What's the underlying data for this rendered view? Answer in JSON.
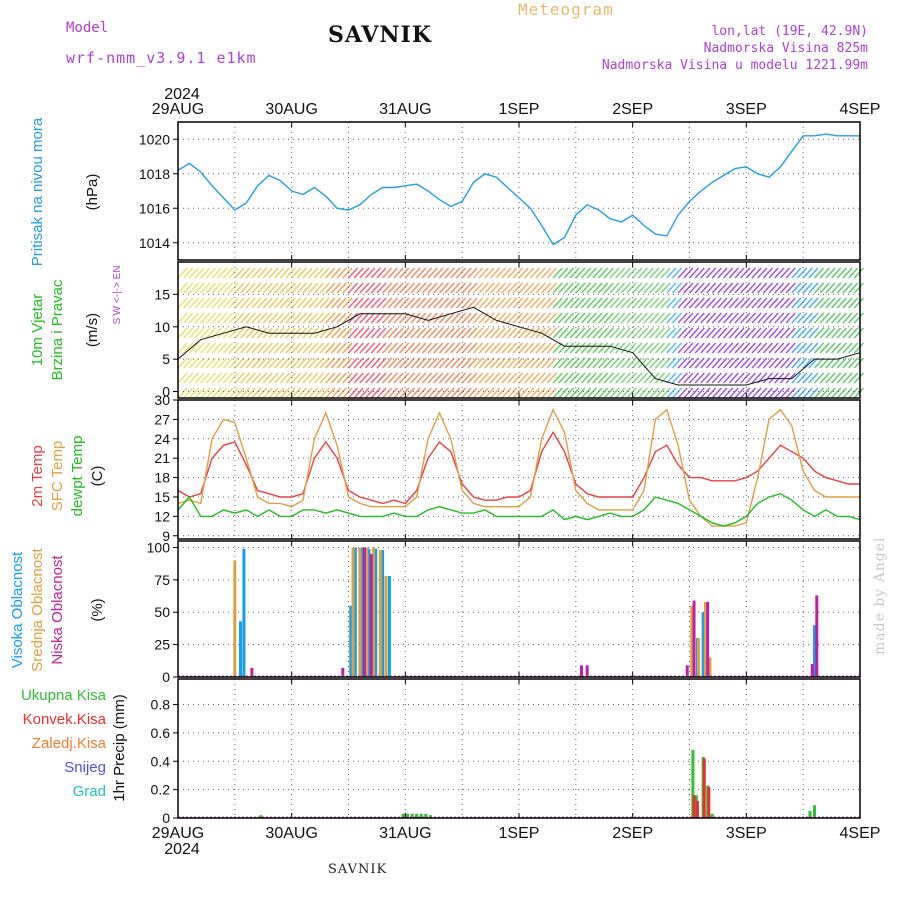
{
  "header": {
    "model_label": "Model",
    "model_name": "wrf-nmm_v3.9.1 e1km",
    "title": "SAVNIK",
    "meteogram_label": "Meteogram",
    "lonlat": "lon,lat (19E, 42.9N)",
    "altitude": "Nadmorska Visina 825m",
    "model_altitude": "Nadmorska Visina u modelu 1221.99m",
    "footer_station": "SAVNIK",
    "credit": "made by Angel"
  },
  "colors": {
    "pressure": "#1fa0e0",
    "temp2m": "#e84040",
    "sfc_temp": "#e0a040",
    "dewpoint": "#20c020",
    "high_cloud": "#10a0f0",
    "mid_cloud": "#e0a040",
    "low_cloud": "#c020a0",
    "total_precip": "#30c030",
    "conv_precip": "#e83030",
    "frozen_precip": "#f08030",
    "snow": "#5050e0",
    "hail": "#20c0c0"
  },
  "time_axis": {
    "year": "2024",
    "labels": [
      "29AUG",
      "30AUG",
      "31AUG",
      "1SEP",
      "2SEP",
      "3SEP",
      "4SEP"
    ]
  },
  "chart_data": [
    {
      "type": "line",
      "panel": "pressure",
      "ylabel_lines": [
        "Pritisak na nivou mora",
        "(hPa)"
      ],
      "ylim": [
        1013,
        1021
      ],
      "yticks": [
        "1014",
        "1016",
        "1018",
        "1020"
      ],
      "x_unit": "days since 29AUG 00UTC",
      "series": [
        {
          "name": "Pritisak na nivou mora",
          "x": [
            0,
            0.1,
            0.2,
            0.3,
            0.4,
            0.5,
            0.6,
            0.7,
            0.8,
            0.9,
            1.0,
            1.1,
            1.2,
            1.3,
            1.4,
            1.5,
            1.6,
            1.7,
            1.8,
            1.9,
            2.0,
            2.1,
            2.2,
            2.3,
            2.4,
            2.5,
            2.6,
            2.7,
            2.8,
            2.9,
            3.0,
            3.1,
            3.2,
            3.3,
            3.4,
            3.5,
            3.6,
            3.7,
            3.8,
            3.9,
            4.0,
            4.1,
            4.2,
            4.3,
            4.4,
            4.5,
            4.6,
            4.7,
            4.8,
            4.9,
            5.0,
            5.1,
            5.2,
            5.3,
            5.4,
            5.5,
            5.6,
            5.7,
            5.8,
            5.9,
            6.0
          ],
          "values": [
            1018.2,
            1018.6,
            1018.1,
            1017.3,
            1016.6,
            1015.9,
            1016.3,
            1017.3,
            1017.9,
            1017.6,
            1017.0,
            1016.8,
            1017.2,
            1016.7,
            1016.0,
            1015.9,
            1016.2,
            1016.8,
            1017.2,
            1017.2,
            1017.3,
            1017.4,
            1017.0,
            1016.5,
            1016.1,
            1016.4,
            1017.5,
            1018.0,
            1017.8,
            1017.2,
            1016.6,
            1016.0,
            1015.0,
            1013.9,
            1014.3,
            1015.6,
            1016.2,
            1015.9,
            1015.4,
            1015.2,
            1015.6,
            1015.0,
            1014.5,
            1014.4,
            1015.6,
            1016.4,
            1017.0,
            1017.5,
            1017.9,
            1018.3,
            1018.4,
            1018.0,
            1017.8,
            1018.4,
            1019.3,
            1020.2,
            1020.2,
            1020.3,
            1020.2,
            1020.2,
            1020.2
          ]
        }
      ]
    },
    {
      "type": "line",
      "panel": "wind",
      "ylabel_lines": [
        "10m Vjetar",
        "Brzina i Pravac",
        "(m/s)"
      ],
      "compass_lines": [
        "N",
        "^",
        "|",
        "W <-|-> E",
        "|",
        "v",
        "S"
      ],
      "ylim": [
        -1,
        20
      ],
      "yticks": [
        "0",
        "5",
        "10",
        "15"
      ],
      "x_unit": "days since 29AUG 00UTC",
      "series": [
        {
          "name": "10m Vjetar",
          "x": [
            0,
            0.2,
            0.4,
            0.6,
            0.8,
            1.0,
            1.2,
            1.4,
            1.6,
            1.8,
            2.0,
            2.2,
            2.4,
            2.6,
            2.8,
            3.0,
            3.2,
            3.4,
            3.6,
            3.8,
            4.0,
            4.2,
            4.4,
            4.6,
            4.8,
            5.0,
            5.2,
            5.4,
            5.6,
            5.8,
            6.0
          ],
          "values": [
            5,
            8,
            9,
            10,
            9,
            9,
            9,
            10,
            12,
            12,
            12,
            11,
            12,
            13,
            11,
            10,
            9,
            7,
            7,
            7,
            6,
            2,
            1,
            1,
            1,
            1,
            2,
            2,
            5,
            5,
            6
          ]
        }
      ]
    },
    {
      "type": "line",
      "panel": "temperature",
      "ylabel_lines": [
        "2m Temp",
        "SFC Temp",
        "dewpt Temp",
        "(C)"
      ],
      "ylim": [
        8.5,
        30
      ],
      "yticks": [
        "9",
        "12",
        "15",
        "18",
        "21",
        "24",
        "27",
        "30"
      ],
      "x_unit": "days since 29AUG 00UTC",
      "series": [
        {
          "name": "2m Temp",
          "x": [
            0,
            0.1,
            0.2,
            0.3,
            0.4,
            0.5,
            0.6,
            0.7,
            0.8,
            0.9,
            1.0,
            1.1,
            1.2,
            1.3,
            1.4,
            1.5,
            1.6,
            1.7,
            1.8,
            1.9,
            2.0,
            2.1,
            2.2,
            2.3,
            2.4,
            2.5,
            2.6,
            2.7,
            2.8,
            2.9,
            3.0,
            3.1,
            3.2,
            3.3,
            3.4,
            3.5,
            3.6,
            3.7,
            3.8,
            3.9,
            4.0,
            4.1,
            4.2,
            4.3,
            4.4,
            4.5,
            4.6,
            4.7,
            4.8,
            4.9,
            5.0,
            5.1,
            5.2,
            5.3,
            5.4,
            5.5,
            5.6,
            5.7,
            5.8,
            5.9,
            6.0
          ],
          "values": [
            16,
            15,
            15.5,
            21,
            23,
            23.5,
            20,
            16,
            15.5,
            15,
            15,
            15.5,
            21,
            23.5,
            21,
            16,
            15,
            14.5,
            14,
            14.5,
            14,
            16,
            21,
            23.5,
            22,
            17,
            15,
            14.5,
            14.5,
            15,
            15,
            16,
            22,
            25,
            22,
            17,
            15.5,
            15,
            15,
            15,
            15,
            18,
            22,
            23,
            20,
            18,
            18,
            17.5,
            17.5,
            17.5,
            18,
            19,
            21,
            23,
            22,
            21,
            19,
            18,
            17.5,
            17,
            17
          ]
        },
        {
          "name": "SFC Temp",
          "x": [
            0,
            0.1,
            0.2,
            0.3,
            0.4,
            0.5,
            0.6,
            0.7,
            0.8,
            0.9,
            1.0,
            1.1,
            1.2,
            1.3,
            1.4,
            1.5,
            1.6,
            1.7,
            1.8,
            1.9,
            2.0,
            2.1,
            2.2,
            2.3,
            2.4,
            2.5,
            2.6,
            2.7,
            2.8,
            2.9,
            3.0,
            3.1,
            3.2,
            3.3,
            3.4,
            3.5,
            3.6,
            3.7,
            3.8,
            3.9,
            4.0,
            4.1,
            4.2,
            4.3,
            4.4,
            4.5,
            4.6,
            4.7,
            4.8,
            4.9,
            5.0,
            5.1,
            5.2,
            5.3,
            5.4,
            5.5,
            5.6,
            5.7,
            5.8,
            5.9,
            6.0
          ],
          "values": [
            14,
            14.5,
            14,
            24,
            27,
            26.5,
            21,
            15,
            14,
            14,
            13.5,
            14.5,
            24,
            28,
            23,
            15,
            14,
            13.5,
            13.5,
            13.5,
            13.5,
            15,
            24,
            28,
            24,
            16,
            14,
            13.5,
            13.5,
            13.5,
            13.5,
            15,
            24,
            28.5,
            25,
            16,
            14,
            13,
            13,
            13,
            13,
            16,
            27,
            28.5,
            23,
            14.5,
            12,
            10.5,
            10.5,
            10.5,
            11,
            18,
            27,
            28.5,
            26,
            19,
            16,
            15,
            15,
            15,
            15
          ]
        },
        {
          "name": "dewpt Temp",
          "x": [
            0,
            0.1,
            0.2,
            0.3,
            0.4,
            0.5,
            0.6,
            0.7,
            0.8,
            0.9,
            1.0,
            1.1,
            1.2,
            1.3,
            1.4,
            1.5,
            1.6,
            1.7,
            1.8,
            1.9,
            2.0,
            2.1,
            2.2,
            2.3,
            2.4,
            2.5,
            2.6,
            2.7,
            2.8,
            2.9,
            3.0,
            3.1,
            3.2,
            3.3,
            3.4,
            3.5,
            3.6,
            3.7,
            3.8,
            3.9,
            4.0,
            4.1,
            4.2,
            4.3,
            4.4,
            4.5,
            4.6,
            4.7,
            4.8,
            4.9,
            5.0,
            5.1,
            5.2,
            5.3,
            5.4,
            5.5,
            5.6,
            5.7,
            5.8,
            5.9,
            6.0
          ],
          "values": [
            13,
            15,
            12,
            12,
            13,
            12.5,
            13,
            12,
            13,
            12,
            12,
            13,
            13,
            12.5,
            13,
            12.5,
            12,
            12,
            12,
            12.5,
            12,
            12,
            13,
            13.5,
            13,
            12.5,
            12.5,
            13,
            12,
            12,
            12,
            12,
            12,
            13,
            11.5,
            12,
            11.5,
            12,
            12.5,
            12,
            12,
            13,
            15,
            14.5,
            14,
            13,
            12,
            11,
            10.5,
            11,
            12,
            14,
            15,
            15.5,
            14.5,
            13,
            12,
            13,
            12,
            12,
            11.5
          ]
        }
      ]
    },
    {
      "type": "bar",
      "panel": "cloud",
      "ylabel_lines": [
        "Visoka Oblacnost",
        "Srednja Oblacnost",
        "Niska Oblacnost",
        "(%)"
      ],
      "ylim": [
        0,
        105
      ],
      "yticks": [
        "0",
        "25",
        "50",
        "75",
        "100"
      ],
      "x_unit": "days since 29AUG 00UTC",
      "series": [
        {
          "name": "Visoka Oblacnost",
          "x": [
            0.55,
            0.58,
            1.52,
            1.56,
            1.62,
            1.68,
            1.74,
            1.8,
            1.86,
            4.57,
            4.62,
            5.6
          ],
          "values": [
            43,
            99,
            55,
            100,
            100,
            99,
            99,
            98,
            78,
            30,
            50,
            40
          ]
        },
        {
          "name": "Srednja Oblacnost",
          "x": [
            0.5,
            1.54,
            1.6,
            1.66,
            1.72,
            1.78,
            1.83,
            4.52,
            4.58,
            4.64,
            4.68
          ],
          "values": [
            90,
            100,
            100,
            100,
            100,
            98,
            78,
            55,
            30,
            58,
            15
          ]
        },
        {
          "name": "Niska Oblacnost",
          "x": [
            0.65,
            1.45,
            1.64,
            1.7,
            3.55,
            3.6,
            4.48,
            4.54,
            4.66,
            5.58,
            5.62
          ],
          "values": [
            7,
            7,
            100,
            95,
            9,
            9,
            9,
            59,
            58,
            10,
            63
          ]
        }
      ]
    },
    {
      "type": "bar",
      "panel": "precip",
      "ylabel_lines": [
        "1hr Precip (mm)"
      ],
      "legend": [
        "Ukupna Kisa",
        "Konvek.Kisa",
        "Zaledj.Kisa",
        "Snijeg",
        "Grad"
      ],
      "ylim": [
        0,
        0.98
      ],
      "yticks": [
        "0",
        "0.2",
        "0.4",
        "0.6",
        "0.8"
      ],
      "x_unit": "days since 29AUG 00UTC",
      "series": [
        {
          "name": "Ukupna Kisa",
          "x": [
            0.73,
            1.98,
            2.02,
            2.06,
            2.1,
            2.14,
            2.18,
            2.22,
            4.53,
            4.56,
            4.62,
            4.66,
            4.7,
            5.56,
            5.6
          ],
          "values": [
            0.02,
            0.03,
            0.03,
            0.03,
            0.03,
            0.03,
            0.03,
            0.02,
            0.48,
            0.16,
            0.43,
            0.23,
            0.03,
            0.05,
            0.09
          ]
        },
        {
          "name": "Konvek.Kisa",
          "x": [
            4.54,
            4.57,
            4.63,
            4.67
          ],
          "values": [
            0.16,
            0.12,
            0.42,
            0.22
          ]
        }
      ]
    }
  ]
}
